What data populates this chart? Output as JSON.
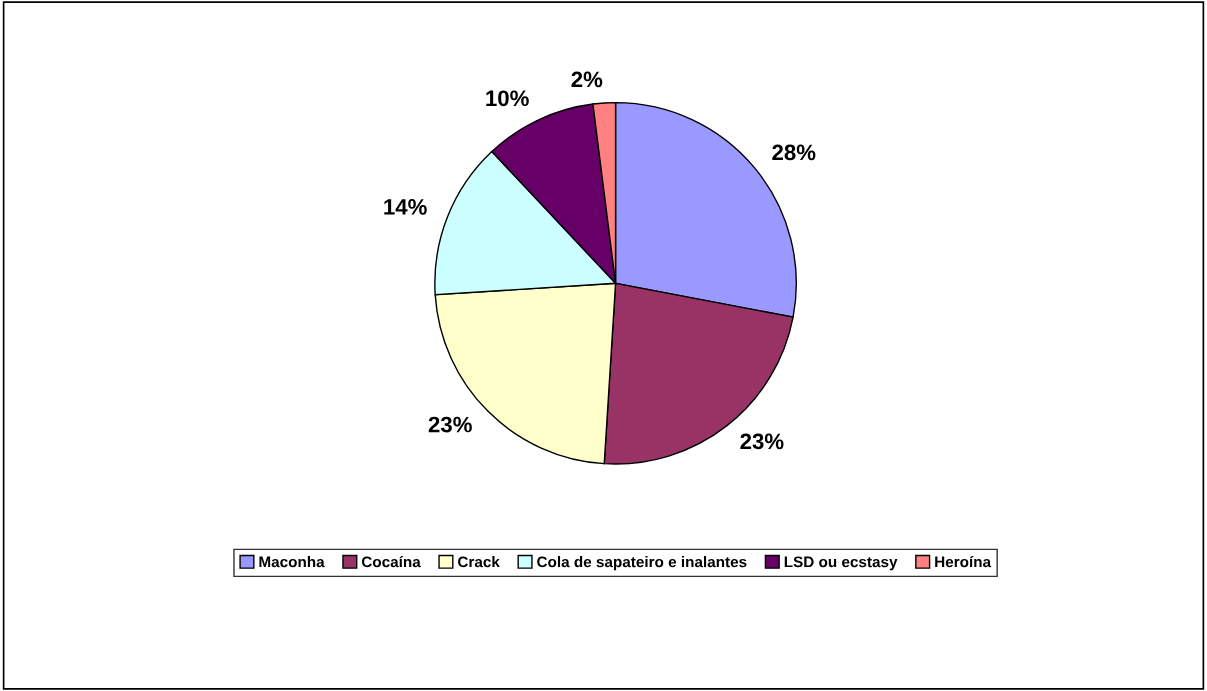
{
  "chart_data": {
    "type": "pie",
    "categories": [
      "Maconha",
      "Cocaína",
      "Crack",
      "Cola de sapateiro e inalantes",
      "LSD ou ecstasy",
      "Heroína"
    ],
    "values": [
      28,
      23,
      23,
      14,
      10,
      2
    ],
    "value_labels": [
      "28%",
      "23%",
      "23%",
      "14%",
      "10%",
      "2%"
    ],
    "colors": [
      "#9999ff",
      "#993366",
      "#ffffcc",
      "#ccffff",
      "#660066",
      "#ff8080"
    ],
    "legend": "bottom"
  }
}
